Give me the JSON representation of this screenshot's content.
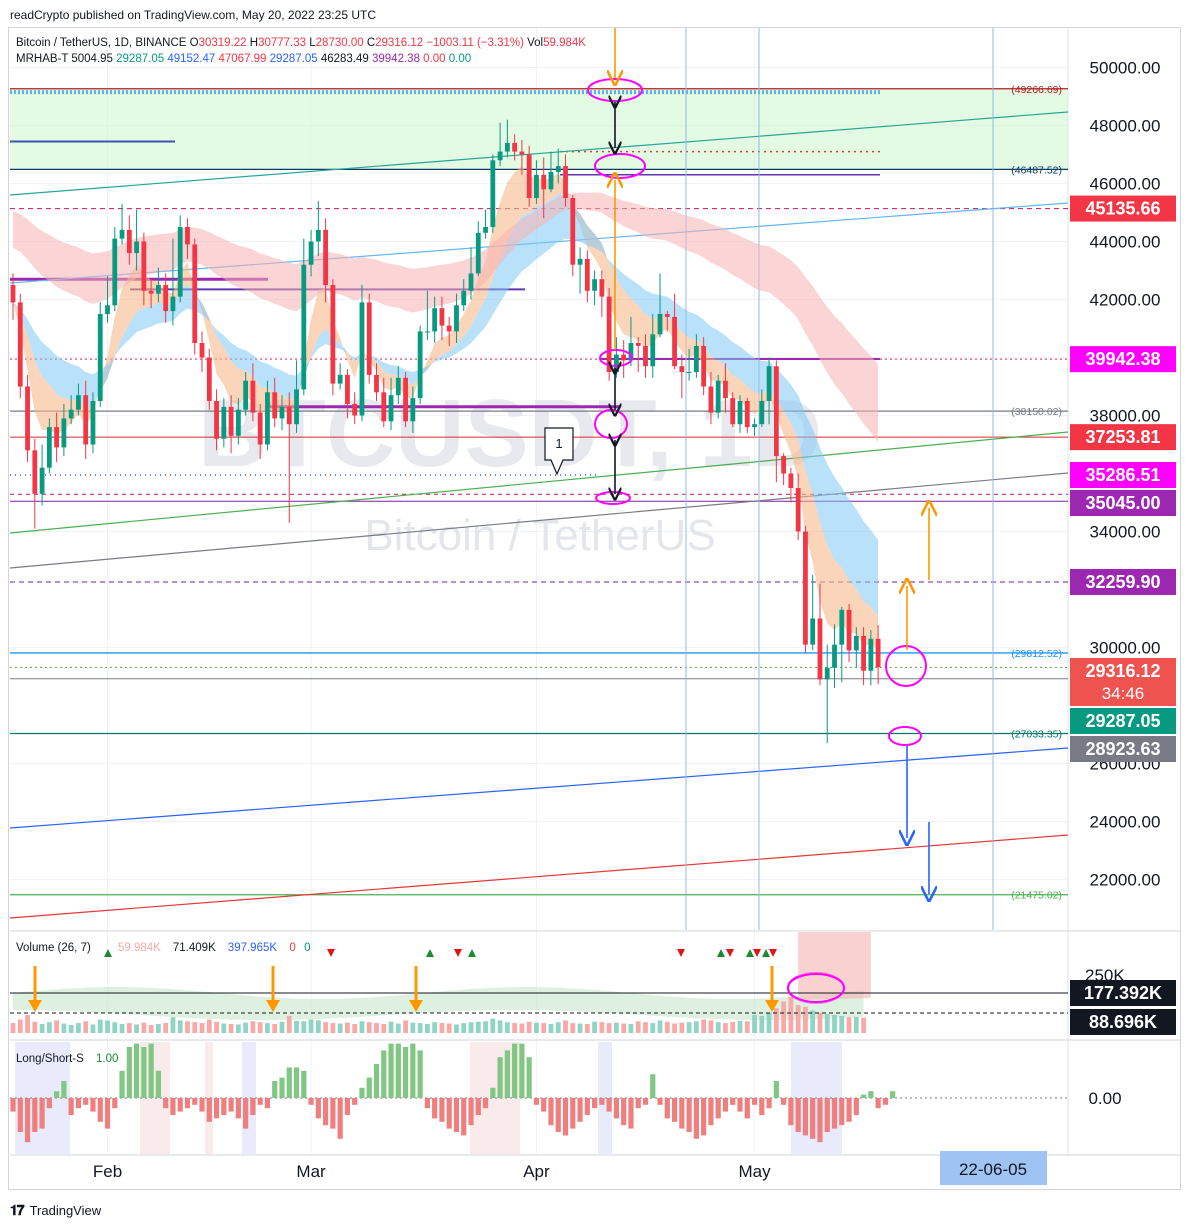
{
  "header": {
    "published": "readCrypto published on TradingView.com, May 20, 2022 23:25 UTC"
  },
  "footer": {
    "brand": "TradingView"
  },
  "legend": {
    "symbol": "Bitcoin / TetherUS, 1D, BINANCE",
    "o_label": "O",
    "o": "30319.22",
    "h_label": "H",
    "h": "30777.33",
    "l_label": "L",
    "l": "28730.00",
    "c_label": "C",
    "c": "29316.12",
    "change": "−1003.11 (−3.31%)",
    "vol_label": "Vol",
    "vol": "59.984K",
    "indicator": "MRHAB-T",
    "ind_values": [
      "5004.95",
      "29287.05",
      "49152.47",
      "47067.99",
      "29287.05",
      "46283.49",
      "39942.38",
      "0.00",
      "0.00"
    ],
    "ind_colors": [
      "#131722",
      "#089981",
      "#2962ff",
      "#f23645",
      "#2962ff",
      "#131722",
      "#9c27b0",
      "#f23645",
      "#089981"
    ]
  },
  "watermark": {
    "ticker": "BTCUSDT, 1D",
    "name": "Bitcoin / TetherUS"
  },
  "chart_data": {
    "type": "candlestick",
    "symbol": "BTCUSDT",
    "timeframe": "1D",
    "ylim": [
      21000,
      51000
    ],
    "y_ticks": [
      "50000.00",
      "48000.00",
      "46000.00",
      "44000.00",
      "42000.00",
      "40000.00",
      "38000.00",
      "34000.00",
      "30000.00",
      "26000.00",
      "24000.00",
      "22000.00"
    ],
    "x_ticks": [
      {
        "label": "Feb",
        "day": 13
      },
      {
        "label": "Mar",
        "day": 41
      },
      {
        "label": "Apr",
        "day": 72
      },
      {
        "label": "May",
        "day": 102
      }
    ],
    "x_cursor_label": "22-06-05",
    "candles": [
      [
        42500,
        41900,
        42900,
        41300
      ],
      [
        41900,
        39000,
        42200,
        38600
      ],
      [
        39000,
        36800,
        39400,
        36400
      ],
      [
        36800,
        35300,
        37200,
        34100
      ],
      [
        35300,
        36200,
        37000,
        34900
      ],
      [
        36200,
        37600,
        37900,
        36000
      ],
      [
        37600,
        36900,
        38100,
        36400
      ],
      [
        36900,
        37900,
        38400,
        36600
      ],
      [
        37900,
        38200,
        38700,
        37700
      ],
      [
        38200,
        38700,
        39100,
        38000
      ],
      [
        38700,
        37000,
        39200,
        36500
      ],
      [
        37000,
        38500,
        38800,
        36700
      ],
      [
        38500,
        41500,
        41900,
        38300
      ],
      [
        41500,
        41800,
        42800,
        41200
      ],
      [
        41800,
        44100,
        44500,
        41600
      ],
      [
        44100,
        44400,
        45300,
        43900
      ],
      [
        44400,
        43600,
        44900,
        43200
      ],
      [
        43600,
        44000,
        45100,
        43000
      ],
      [
        44000,
        42300,
        44300,
        41800
      ],
      [
        42300,
        42200,
        42700,
        41700
      ],
      [
        42200,
        42500,
        43100,
        41900
      ],
      [
        42500,
        41600,
        42900,
        41200
      ],
      [
        41600,
        42100,
        44100,
        41100
      ],
      [
        42100,
        44500,
        44900,
        41900
      ],
      [
        44500,
        43900,
        44800,
        43400
      ],
      [
        43900,
        40500,
        44100,
        40100
      ],
      [
        40500,
        40000,
        40900,
        39500
      ],
      [
        40000,
        38500,
        40300,
        38200
      ],
      [
        38500,
        37200,
        38900,
        36800
      ],
      [
        37200,
        38300,
        38600,
        36900
      ],
      [
        38300,
        37300,
        38700,
        36700
      ],
      [
        37300,
        38200,
        38600,
        37000
      ],
      [
        38200,
        39200,
        39500,
        38000
      ],
      [
        39200,
        38100,
        39800,
        37800
      ],
      [
        38100,
        37000,
        38400,
        36500
      ],
      [
        37000,
        38800,
        39200,
        36800
      ],
      [
        38800,
        37900,
        39300,
        37600
      ],
      [
        37900,
        38300,
        38700,
        37500
      ],
      [
        38300,
        37700,
        38800,
        34300
      ],
      [
        37700,
        38900,
        39900,
        37400
      ],
      [
        38900,
        43200,
        44100,
        38700
      ],
      [
        43200,
        44000,
        44400,
        42800
      ],
      [
        44000,
        44400,
        45400,
        43500
      ],
      [
        44400,
        42500,
        44800,
        41900
      ],
      [
        42500,
        39100,
        42700,
        38700
      ],
      [
        39100,
        39400,
        39800,
        38900
      ],
      [
        39400,
        38400,
        39600,
        37900
      ],
      [
        38400,
        38000,
        38800,
        37700
      ],
      [
        38000,
        41900,
        42500,
        37800
      ],
      [
        41900,
        39400,
        42200,
        39100
      ],
      [
        39400,
        38800,
        39800,
        38500
      ],
      [
        38800,
        37800,
        39300,
        37600
      ],
      [
        37800,
        38700,
        39300,
        37500
      ],
      [
        38700,
        39300,
        39700,
        38400
      ],
      [
        39300,
        37800,
        39500,
        37600
      ],
      [
        37800,
        38600,
        39000,
        37400
      ],
      [
        38600,
        40900,
        41100,
        38400
      ],
      [
        40900,
        40900,
        42300,
        40600
      ],
      [
        40900,
        41700,
        42100,
        40500
      ],
      [
        41700,
        41100,
        42100,
        40600
      ],
      [
        41100,
        40900,
        41400,
        40400
      ],
      [
        40900,
        41800,
        42200,
        40500
      ],
      [
        41800,
        42300,
        42700,
        41600
      ],
      [
        42300,
        42900,
        43800,
        42000
      ],
      [
        42900,
        44300,
        44700,
        42800
      ],
      [
        44300,
        44500,
        45100,
        44100
      ],
      [
        44500,
        46800,
        47000,
        44300
      ],
      [
        46800,
        47100,
        48100,
        46600
      ],
      [
        47100,
        47400,
        48200,
        46900
      ],
      [
        47400,
        47100,
        47700,
        46800
      ],
      [
        47100,
        47000,
        47500,
        46300
      ],
      [
        47000,
        45500,
        47300,
        45200
      ],
      [
        45500,
        46300,
        46800,
        45300
      ],
      [
        46300,
        45800,
        46900,
        44800
      ],
      [
        45800,
        46400,
        47100,
        45700
      ],
      [
        46400,
        46600,
        47200,
        46000
      ],
      [
        46600,
        45500,
        47000,
        45200
      ],
      [
        45500,
        43200,
        45600,
        42800
      ],
      [
        43200,
        43400,
        43800,
        42200
      ],
      [
        43400,
        42300,
        43700,
        41900
      ],
      [
        42300,
        42700,
        43000,
        41800
      ],
      [
        42700,
        42100,
        43000,
        41400
      ],
      [
        42100,
        39500,
        42400,
        39200
      ],
      [
        39500,
        40100,
        40700,
        39300
      ],
      [
        40100,
        39900,
        40600,
        39300
      ],
      [
        39900,
        40500,
        41400,
        39700
      ],
      [
        40500,
        40400,
        40700,
        39500
      ],
      [
        40400,
        39700,
        40800,
        39300
      ],
      [
        39700,
        40800,
        41500,
        39300
      ],
      [
        40800,
        41500,
        42900,
        40700
      ],
      [
        41500,
        41400,
        41600,
        40900
      ],
      [
        41400,
        39700,
        42200,
        39600
      ],
      [
        39700,
        39500,
        40100,
        38600
      ],
      [
        39500,
        39500,
        40300,
        39200
      ],
      [
        39500,
        40400,
        40800,
        39300
      ],
      [
        40400,
        39000,
        40700,
        38700
      ],
      [
        39000,
        38100,
        39500,
        37700
      ],
      [
        38100,
        39200,
        39400,
        37900
      ],
      [
        39200,
        38600,
        39800,
        38100
      ],
      [
        38600,
        37700,
        38800,
        37600
      ],
      [
        37700,
        38500,
        38700,
        37400
      ],
      [
        38500,
        37600,
        38600,
        37400
      ],
      [
        37600,
        37700,
        37900,
        37300
      ],
      [
        37700,
        38500,
        38900,
        37600
      ],
      [
        38500,
        39700,
        40000,
        37700
      ],
      [
        39700,
        36600,
        39900,
        35700
      ],
      [
        36600,
        36000,
        36700,
        35600
      ],
      [
        36000,
        35500,
        36200,
        35000
      ],
      [
        35500,
        34000,
        36000,
        33700
      ],
      [
        34000,
        30100,
        34200,
        29800
      ],
      [
        30100,
        31000,
        32500,
        29900
      ],
      [
        31000,
        28900,
        32200,
        28700
      ],
      [
        28900,
        29300,
        30100,
        26700
      ],
      [
        29300,
        30100,
        30800,
        28600
      ],
      [
        30100,
        31300,
        31400,
        28800
      ],
      [
        31300,
        29900,
        31500,
        29500
      ],
      [
        29900,
        30400,
        30700,
        29300
      ],
      [
        30400,
        29200,
        30700,
        28700
      ],
      [
        29200,
        30300,
        30600,
        28700
      ],
      [
        30300,
        29316,
        30777,
        28730
      ]
    ],
    "price_labels": [
      {
        "value": 45135.66,
        "label": "45135.66",
        "color": "#f23645"
      },
      {
        "value": 39942.38,
        "label": "39942.38",
        "color": "#ff00ff"
      },
      {
        "value": 37253.81,
        "label": "37253.81",
        "color": "#f23645"
      },
      {
        "value": 35286.51,
        "label": "35286.51",
        "color": "#ff00ff"
      },
      {
        "value": 35045.0,
        "label": "35045.00",
        "color": "#9c27b0"
      },
      {
        "value": 32259.9,
        "label": "32259.90",
        "color": "#9c27b0"
      },
      {
        "value": 29316.12,
        "label": "29316.12",
        "sub": "34:46",
        "color": "#ef5350"
      },
      {
        "value": 29287.05,
        "label": "29287.05",
        "color": "#089981"
      },
      {
        "value": 28923.63,
        "label": "28923.63",
        "color": "#787b86"
      }
    ],
    "levels": [
      {
        "value": 49266.69,
        "label": "(49266.69)",
        "color": "#b71c1c"
      },
      {
        "value": 46487.52,
        "label": "(46487.52)",
        "color": "#0d3b66"
      },
      {
        "value": 38150.02,
        "label": "(38150.02)",
        "color": "#787b86"
      },
      {
        "value": 29812.52,
        "label": "(29812.52)",
        "color": "#2196f3"
      },
      {
        "value": 27033.35,
        "label": "(27033.35)",
        "color": "#00796b"
      },
      {
        "value": 21475.02,
        "label": "(21475.02)",
        "color": "#4caf50"
      }
    ],
    "annotation_marker": "1",
    "volume": {
      "title": "Volume (26, 7)",
      "values": [
        "59.984K",
        "71.409K",
        "397.965K",
        "0",
        "0"
      ],
      "value_colors": [
        "#f7a9a7",
        "#131722",
        "#2962ff",
        "#f23645",
        "#089981"
      ],
      "axis_tick": "250K",
      "labels": [
        {
          "label": "177.392K",
          "color": "#131722"
        },
        {
          "label": "88.696K",
          "color": "#131722"
        }
      ],
      "bars": [
        22,
        30,
        40,
        25,
        20,
        24,
        28,
        21,
        18,
        22,
        26,
        19,
        30,
        28,
        24,
        20,
        22,
        19,
        23,
        18,
        20,
        22,
        35,
        28,
        26,
        24,
        22,
        30,
        25,
        21,
        20,
        19,
        23,
        26,
        24,
        22,
        20,
        25,
        38,
        27,
        26,
        30,
        28,
        24,
        22,
        21,
        23,
        20,
        26,
        24,
        22,
        20,
        25,
        21,
        28,
        23,
        22,
        20,
        24,
        22,
        21,
        19,
        22,
        24,
        25,
        26,
        32,
        28,
        24,
        22,
        21,
        25,
        23,
        22,
        20,
        24,
        28,
        22,
        21,
        20,
        25,
        24,
        22,
        23,
        21,
        20,
        26,
        24,
        22,
        28,
        25,
        21,
        23,
        24,
        26,
        30,
        28,
        24,
        22,
        25,
        27,
        26,
        40,
        38,
        45,
        55,
        70,
        80,
        62,
        58,
        50,
        45,
        42,
        40,
        38,
        35,
        36,
        34
      ]
    },
    "long_short": {
      "title": "Long/Short-S",
      "value": "1.00",
      "axis_tick": "0.00",
      "bars": [
        -4,
        -10,
        -13,
        -10,
        -9,
        -3,
        2,
        5,
        -5,
        -3,
        -2,
        -4,
        -7,
        -9,
        -3,
        8,
        15,
        16,
        15,
        16,
        8,
        -3,
        -5,
        -4,
        -3,
        -2,
        -4,
        -7,
        -6,
        -5,
        -4,
        -6,
        -9,
        -5,
        -2,
        -3,
        5,
        6,
        9,
        9,
        8,
        -2,
        -6,
        -8,
        -9,
        -12,
        -5,
        -2,
        3,
        6,
        10,
        14,
        16,
        16,
        15,
        16,
        14,
        -3,
        -6,
        -7,
        -9,
        -10,
        -11,
        -8,
        -5,
        -3,
        3,
        12,
        14,
        16,
        16,
        12,
        -2,
        -4,
        -8,
        -10,
        -11,
        -9,
        -7,
        -5,
        -3,
        -2,
        -4,
        -6,
        -8,
        -9,
        -3,
        -2,
        7,
        -2,
        -6,
        -7,
        -9,
        -10,
        -12,
        -11,
        -8,
        -6,
        -4,
        -2,
        -4,
        -6,
        -2,
        -5,
        -3,
        5,
        -2,
        -8,
        -10,
        -11,
        -12,
        -13,
        -10,
        -9,
        -8,
        -7,
        -5,
        1,
        2,
        -3,
        -2,
        2
      ]
    },
    "colors": {
      "up": "#089981",
      "down": "#f23645",
      "grid": "#f0f3fa",
      "support_zone": "#ccf5cc",
      "ema_fast_fill": "#f7b98a",
      "ema_slow_fill": "#81c8f5",
      "ema_upper_fill": "#f7b2b2"
    }
  }
}
